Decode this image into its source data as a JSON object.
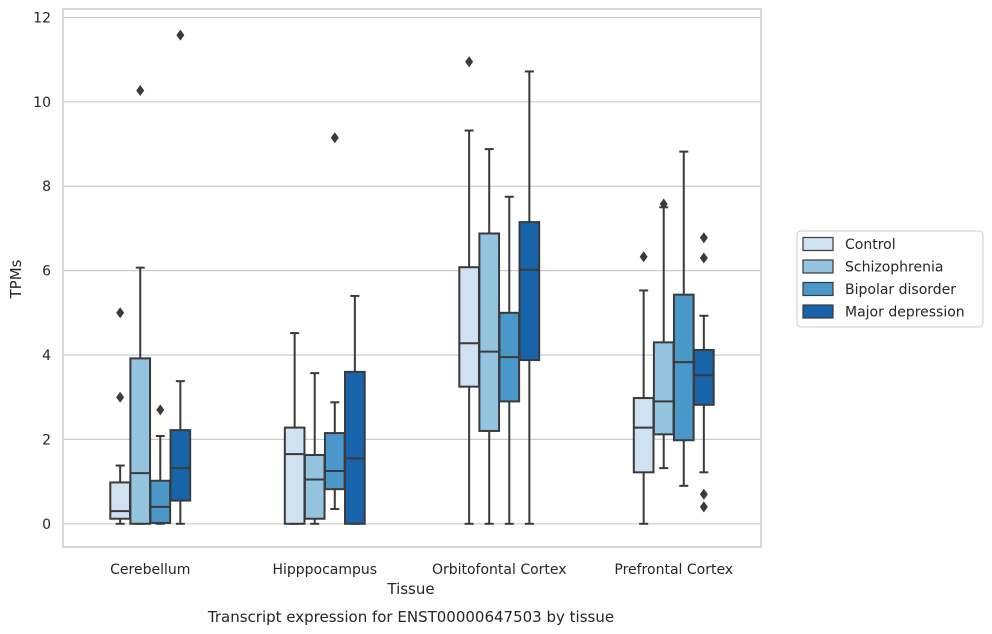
{
  "chart_data": {
    "type": "box",
    "title": "",
    "caption": "Transcript expression for ENST00000647503 by tissue",
    "xlabel": "Tissue",
    "ylabel": "TPMs",
    "ylim": [
      -0.55,
      12.2
    ],
    "yticks": [
      0,
      2,
      4,
      6,
      8,
      10,
      12
    ],
    "grid": "horizontal",
    "legend_position": "right",
    "categories": [
      "Cerebellum",
      "Hipppocampus",
      "Orbitofontal Cortex",
      "Prefrontal Cortex"
    ],
    "series": [
      {
        "name": "Control",
        "color": "#d0e1f2",
        "boxes": [
          {
            "whisker_low": 0,
            "q1": 0.12,
            "median": 0.3,
            "q3": 0.98,
            "whisker_high": 1.38,
            "outliers": [
              3.0,
              5.0
            ]
          },
          {
            "whisker_low": 0,
            "q1": 0,
            "median": 1.65,
            "q3": 2.28,
            "whisker_high": 4.52,
            "outliers": []
          },
          {
            "whisker_low": 0,
            "q1": 3.25,
            "median": 4.28,
            "q3": 6.08,
            "whisker_high": 9.32,
            "outliers": [
              10.95
            ]
          },
          {
            "whisker_low": 0,
            "q1": 1.22,
            "median": 2.28,
            "q3": 2.98,
            "whisker_high": 5.53,
            "outliers": [
              6.33
            ]
          }
        ]
      },
      {
        "name": "Schizophrenia",
        "color": "#94c4df",
        "boxes": [
          {
            "whisker_low": 0,
            "q1": 0,
            "median": 1.2,
            "q3": 3.92,
            "whisker_high": 6.07,
            "outliers": [
              10.27
            ]
          },
          {
            "whisker_low": 0,
            "q1": 0.12,
            "median": 1.05,
            "q3": 1.63,
            "whisker_high": 3.57,
            "outliers": []
          },
          {
            "whisker_low": 0,
            "q1": 2.2,
            "median": 4.08,
            "q3": 6.88,
            "whisker_high": 8.88,
            "outliers": []
          },
          {
            "whisker_low": 1.32,
            "q1": 2.12,
            "median": 2.9,
            "q3": 4.3,
            "whisker_high": 7.5,
            "outliers": [
              7.58
            ]
          }
        ]
      },
      {
        "name": "Bipolar disorder",
        "color": "#4a98c9",
        "boxes": [
          {
            "whisker_low": 0,
            "q1": 0.02,
            "median": 0.4,
            "q3": 1.02,
            "whisker_high": 2.08,
            "outliers": [
              2.7
            ]
          },
          {
            "whisker_low": 0.35,
            "q1": 0.82,
            "median": 1.25,
            "q3": 2.15,
            "whisker_high": 2.88,
            "outliers": [
              9.15
            ]
          },
          {
            "whisker_low": 0,
            "q1": 2.9,
            "median": 3.95,
            "q3": 5.0,
            "whisker_high": 7.75,
            "outliers": []
          },
          {
            "whisker_low": 0.9,
            "q1": 1.98,
            "median": 3.83,
            "q3": 5.43,
            "whisker_high": 8.82,
            "outliers": []
          }
        ]
      },
      {
        "name": "Major depression",
        "color": "#1764ab",
        "boxes": [
          {
            "whisker_low": 0,
            "q1": 0.55,
            "median": 1.32,
            "q3": 2.22,
            "whisker_high": 3.38,
            "outliers": [
              11.58
            ]
          },
          {
            "whisker_low": 0,
            "q1": 0,
            "median": 1.55,
            "q3": 3.6,
            "whisker_high": 5.4,
            "outliers": []
          },
          {
            "whisker_low": 0,
            "q1": 3.88,
            "median": 6.02,
            "q3": 7.15,
            "whisker_high": 10.72,
            "outliers": []
          },
          {
            "whisker_low": 1.22,
            "q1": 2.82,
            "median": 3.52,
            "q3": 4.12,
            "whisker_high": 4.93,
            "outliers": [
              0.4,
              0.7,
              6.3,
              6.78
            ]
          }
        ]
      }
    ]
  }
}
